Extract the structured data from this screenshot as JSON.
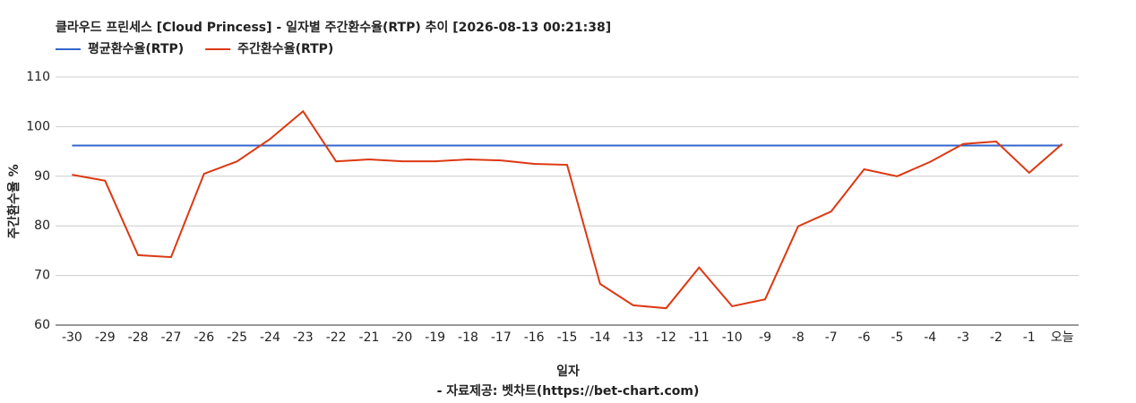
{
  "chart_data": {
    "type": "line",
    "title": "클라우드 프린세스 [Cloud Princess] - 일자별 주간환수율(RTP) 추이 [2026-08-13 00:21:38]",
    "x_label": "일자",
    "y_label": "주간환수율 %",
    "source": "- 자료제공: 벳차트(https://bet-chart.com)",
    "categories": [
      "-30",
      "-29",
      "-28",
      "-27",
      "-26",
      "-25",
      "-24",
      "-23",
      "-22",
      "-21",
      "-20",
      "-19",
      "-18",
      "-17",
      "-16",
      "-15",
      "-14",
      "-13",
      "-12",
      "-11",
      "-10",
      "-9",
      "-8",
      "-7",
      "-6",
      "-5",
      "-4",
      "-3",
      "-2",
      "-1",
      "오늘"
    ],
    "series": [
      {
        "name": "평균환수율(RTP)",
        "color": "#3366cc",
        "values": [
          96.2,
          96.2,
          96.2,
          96.2,
          96.2,
          96.2,
          96.2,
          96.2,
          96.2,
          96.2,
          96.2,
          96.2,
          96.2,
          96.2,
          96.2,
          96.2,
          96.2,
          96.2,
          96.2,
          96.2,
          96.2,
          96.2,
          96.2,
          96.2,
          96.2,
          96.2,
          96.2,
          96.2,
          96.2,
          96.2,
          96.2
        ]
      },
      {
        "name": "주간환수율(RTP)",
        "color": "#dc3912",
        "values": [
          90.3,
          89.1,
          74.1,
          73.7,
          90.5,
          93.0,
          97.5,
          103.1,
          93.0,
          93.4,
          93.0,
          93.0,
          93.4,
          93.2,
          92.5,
          92.3,
          68.3,
          64.0,
          63.4,
          71.6,
          63.8,
          65.2,
          79.9,
          82.9,
          91.4,
          90.0,
          92.9,
          96.5,
          97.0,
          90.7,
          96.5
        ]
      }
    ],
    "ylim": [
      60,
      110
    ],
    "yticks": [
      60,
      70,
      80,
      90,
      100,
      110
    ],
    "grid": true,
    "legend": "top-left"
  }
}
